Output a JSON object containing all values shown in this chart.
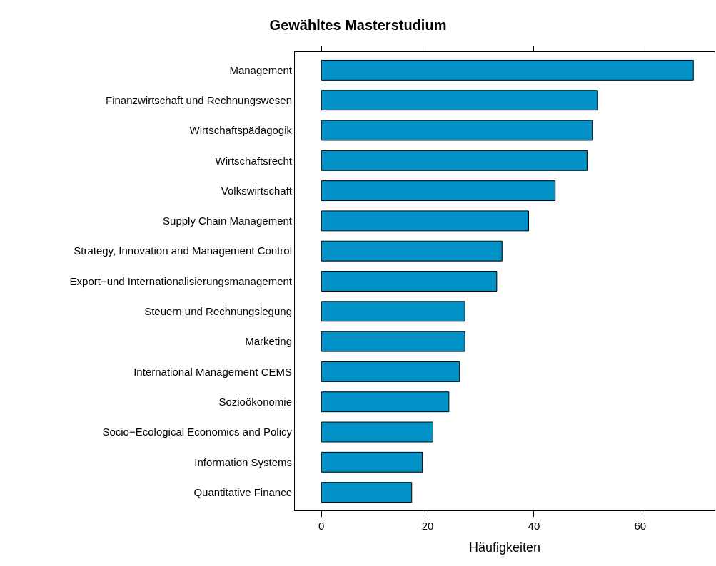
{
  "chart_data": {
    "type": "bar",
    "orientation": "horizontal",
    "title": "Gewähltes Masterstudium",
    "xlabel": "Häufigkeiten",
    "categories": [
      "Management",
      "Finanzwirtschaft und Rechnungswesen",
      "Wirtschaftspädagogik",
      "Wirtschaftsrecht",
      "Volkswirtschaft",
      "Supply Chain Management",
      "Strategy, Innovation and Management Control",
      "Export−und Internationalisierungsmanagement",
      "Steuern und Rechnungslegung",
      "Marketing",
      "International Management CEMS",
      "Sozioökonomie",
      "Socio−Ecological Economics and Policy",
      "Information Systems",
      "Quantitative Finance"
    ],
    "values": [
      70,
      52,
      51,
      50,
      44,
      39,
      34,
      33,
      27,
      27,
      26,
      24,
      21,
      19,
      17
    ],
    "color": "#0291c7",
    "xlim": [
      -5,
      74
    ],
    "xticks": [
      0,
      20,
      40,
      60
    ]
  }
}
